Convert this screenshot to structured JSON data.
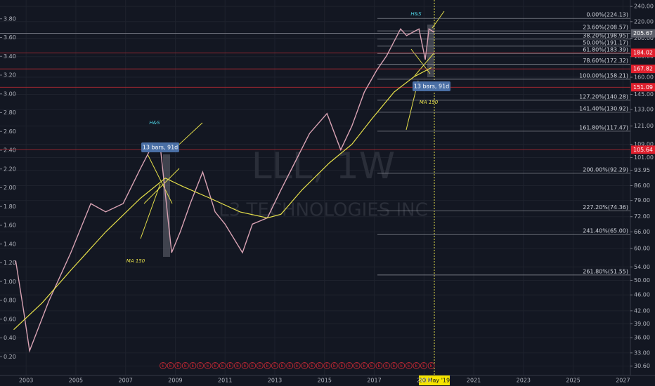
{
  "chart_data": {
    "type": "line",
    "watermark": "LLL, 1W",
    "watermark_subtitle": "L3 TECHNOLOGIES INC",
    "log_scale": true,
    "grid": true,
    "xlim": [
      2001.95,
      2027.3
    ],
    "xticks": [
      2003,
      2005,
      2007,
      2009,
      2011,
      2013,
      2015,
      2017,
      2019,
      2021,
      2023,
      2025,
      2027
    ],
    "ylim": [
      29,
      249
    ],
    "yticks": [
      {
        "value": 240,
        "label": "240.00"
      },
      {
        "value": 220,
        "label": "220.00"
      },
      {
        "value": 200,
        "label": "200.00"
      },
      {
        "value": 180,
        "label": "180.00"
      },
      {
        "value": 160,
        "label": "160.00"
      },
      {
        "value": 145,
        "label": "145.00"
      },
      {
        "value": 133,
        "label": "133.00"
      },
      {
        "value": 121,
        "label": "121.00"
      },
      {
        "value": 109,
        "label": "109.00"
      },
      {
        "value": 101,
        "label": "101.00"
      },
      {
        "value": 93.95,
        "label": "93.95"
      },
      {
        "value": 86,
        "label": "86.00"
      },
      {
        "value": 79,
        "label": "79.00"
      },
      {
        "value": 72,
        "label": "72.00"
      },
      {
        "value": 66,
        "label": "66.00"
      },
      {
        "value": 60,
        "label": "60.00"
      },
      {
        "value": 54,
        "label": "54.00"
      },
      {
        "value": 50,
        "label": "50.00"
      },
      {
        "value": 46,
        "label": "46.00"
      },
      {
        "value": 42,
        "label": "42.00"
      },
      {
        "value": 39,
        "label": "39.00"
      },
      {
        "value": 36,
        "label": "36.00"
      },
      {
        "value": 33,
        "label": "33.00"
      },
      {
        "value": 30.6,
        "label": "30.60"
      }
    ],
    "y2lim": [
      0,
      4.0
    ],
    "y2ticks": [
      {
        "value": 0.2,
        "label": "0.20"
      },
      {
        "value": 0.4,
        "label": "0.40"
      },
      {
        "value": 0.6,
        "label": "0.60"
      },
      {
        "value": 0.8,
        "label": "0.80"
      },
      {
        "value": 1.0,
        "label": "1.00"
      },
      {
        "value": 1.2,
        "label": "1.20"
      },
      {
        "value": 1.4,
        "label": "1.40"
      },
      {
        "value": 1.6,
        "label": "1.60"
      },
      {
        "value": 1.8,
        "label": "1.80"
      },
      {
        "value": 2.0,
        "label": "2.00"
      },
      {
        "value": 2.2,
        "label": "2.20"
      },
      {
        "value": 2.4,
        "label": "2.40"
      },
      {
        "value": 2.6,
        "label": "2.60"
      },
      {
        "value": 2.8,
        "label": "2.80"
      },
      {
        "value": 3.0,
        "label": "3.00"
      },
      {
        "value": 3.2,
        "label": "3.20"
      },
      {
        "value": 3.4,
        "label": "3.40"
      },
      {
        "value": 3.6,
        "label": "3.60"
      },
      {
        "value": 3.8,
        "label": "3.80"
      }
    ],
    "series": [
      {
        "color": "#d9a3b4",
        "x": [
          2002.58,
          2002.9,
          2003.14,
          2003.9,
          2004.8,
          2005.6,
          2006.2,
          2006.9,
          2007.6,
          2008.1,
          2008.4,
          2008.85,
          2009.2,
          2009.6,
          2010.1,
          2010.6,
          2011.0,
          2011.7,
          2012.1,
          2012.7,
          2013.25,
          2013.8,
          2014.4,
          2015.1,
          2015.65,
          2016.1,
          2016.6,
          2017.1,
          2017.5,
          2018.06,
          2018.3,
          2018.8,
          2019.05,
          2019.2,
          2019.4
        ],
        "values": [
          56,
          42,
          33.4,
          44.2,
          58.6,
          77.6,
          74,
          77.6,
          94.9,
          109,
          107,
          58.6,
          66,
          77.6,
          93,
          74,
          69,
          58.6,
          69,
          71.5,
          84,
          98,
          116,
          130,
          105.6,
          121,
          147,
          166.6,
          181,
          211,
          203,
          211,
          177,
          211,
          207
        ]
      },
      {
        "name": "MA 150",
        "color": "#e6e04a",
        "x": [
          2002.5,
          2003.65,
          2004.8,
          2006.2,
          2007.6,
          2008.6,
          2009.3,
          2010.4,
          2011.6,
          2012.7,
          2013.25,
          2014.1,
          2015.2,
          2016.1,
          2016.9,
          2017.8,
          2018.6,
          2019.3
        ],
        "values": [
          37.7,
          44,
          53,
          66,
          80,
          89.8,
          85.6,
          80,
          74,
          71.5,
          73,
          84,
          98,
          109,
          126,
          147,
          160.5,
          169
        ]
      }
    ],
    "fib_levels": [
      {
        "value": 224.13,
        "label": "0.00%(224.13)"
      },
      {
        "value": 208.57,
        "label": "23.60%(208.57)"
      },
      {
        "value": 198.95,
        "label": "38.20%(198.95)"
      },
      {
        "value": 191.17,
        "label": "50.00%(191.17)"
      },
      {
        "value": 183.39,
        "label": "61.80%(183.39)"
      },
      {
        "value": 172.32,
        "label": "78.60%(172.32)"
      },
      {
        "value": 158.21,
        "label": "100.00%(158.21)"
      },
      {
        "value": 140.28,
        "label": "127.20%(140.28)"
      },
      {
        "value": 130.92,
        "label": "141.40%(130.92)"
      },
      {
        "value": 117.47,
        "label": "161.80%(117.47)"
      },
      {
        "value": 92.29,
        "label": "200.00%(92.29)"
      },
      {
        "value": 74.36,
        "label": "227.20%(74.36)"
      },
      {
        "value": 65.0,
        "label": "241.40%(65.00)"
      },
      {
        "value": 51.55,
        "label": "261.80%(51.55)"
      }
    ],
    "price_lines": [
      205.67,
      184.02,
      167.82,
      151.09,
      105.64
    ],
    "annotations": [
      "H&S",
      "H&S",
      "MA 150",
      "MA 150",
      "13 bars, 91d",
      "13 bars, 91d"
    ],
    "crosshair_label": "20 May '19",
    "earnings_marker": "E"
  }
}
